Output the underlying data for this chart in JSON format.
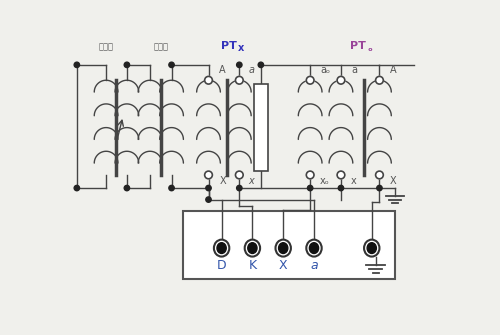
{
  "bg_color": "#f0f0ec",
  "line_color": "#444444",
  "lw": 1.0,
  "figsize": [
    5.0,
    3.35
  ],
  "dpi": 100,
  "label_ptx_color": "#3333bb",
  "label_pto_color": "#994499",
  "label_color": "#555555",
  "terminal_label_color": "#3355aa",
  "xlim": [
    0,
    500
  ],
  "ylim": [
    0,
    335
  ],
  "labels": {
    "tiaoya": "调压器",
    "shengya": "升压器",
    "PTx": "PTx",
    "PTo": "PTₒ",
    "A1": "A",
    "X1": "X",
    "a1": "a",
    "x1": "x",
    "a0": "aₒ",
    "x0": "xₒ",
    "a2": "a",
    "x2": "x",
    "A2": "A",
    "X2": "X",
    "D": "D",
    "K": "K",
    "X": "X",
    "a": "a"
  }
}
